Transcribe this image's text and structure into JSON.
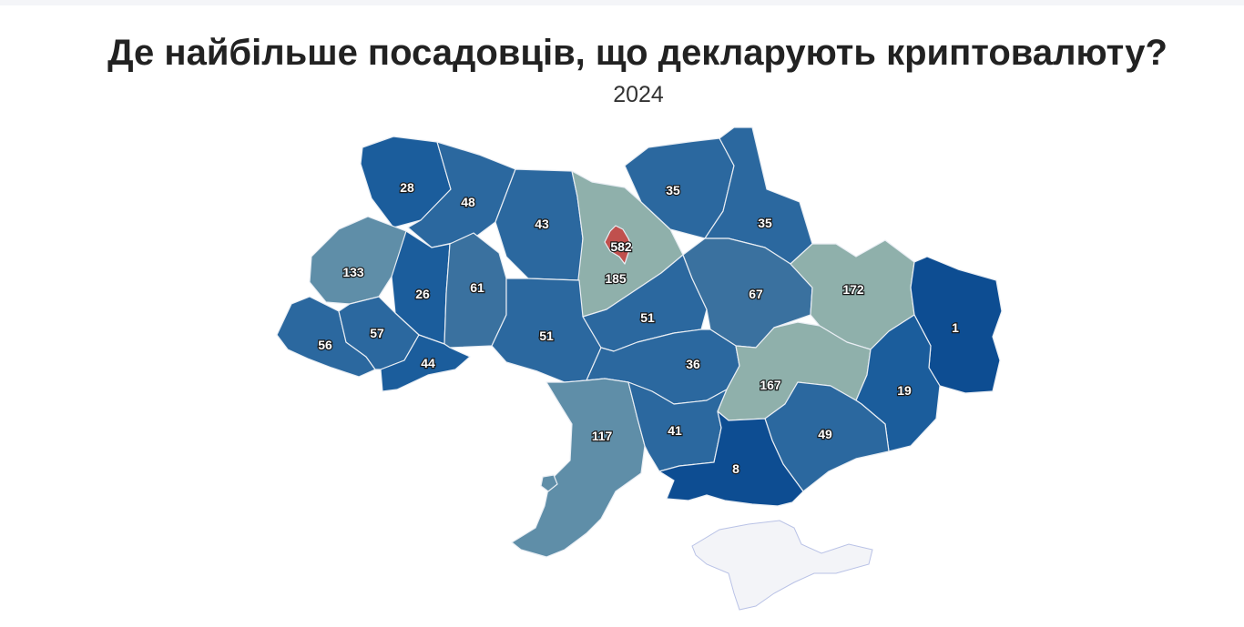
{
  "title": "Де найбільше посадовців, що декларують криптовалюту?",
  "subtitle": "2024",
  "colors": {
    "darkest": "#0d4d92",
    "dark": "#1b5d9c",
    "mid": "#2b689f",
    "midlight": "#3a719f",
    "steel": "#5f8ea8",
    "grey": "#8fb0ab",
    "kyiv_city": "#c0504d",
    "crimea": "#f3f4f8"
  },
  "regions": [
    {
      "id": "volyn",
      "value": "28"
    },
    {
      "id": "rivne",
      "value": "48"
    },
    {
      "id": "zhytomyr",
      "value": "43"
    },
    {
      "id": "kyiv-city",
      "value": "582"
    },
    {
      "id": "kyiv-oblast",
      "value": "185"
    },
    {
      "id": "chernihiv",
      "value": "35"
    },
    {
      "id": "sumy",
      "value": "35"
    },
    {
      "id": "lviv",
      "value": "133"
    },
    {
      "id": "ternopil",
      "value": "26"
    },
    {
      "id": "khmelnytskyi",
      "value": "61"
    },
    {
      "id": "vinnytsia",
      "value": "51"
    },
    {
      "id": "cherkasy",
      "value": "51"
    },
    {
      "id": "poltava",
      "value": "67"
    },
    {
      "id": "kharkiv",
      "value": "172"
    },
    {
      "id": "luhansk",
      "value": "1"
    },
    {
      "id": "zakarpattia",
      "value": "56"
    },
    {
      "id": "ivano-frankivsk",
      "value": "57"
    },
    {
      "id": "chernivtsi",
      "value": "44"
    },
    {
      "id": "kirovohrad",
      "value": "36"
    },
    {
      "id": "dnipropetrovsk",
      "value": "167"
    },
    {
      "id": "donetsk",
      "value": "19"
    },
    {
      "id": "odesa",
      "value": "117"
    },
    {
      "id": "mykolaiv",
      "value": "41"
    },
    {
      "id": "zaporizhzhia",
      "value": "49"
    },
    {
      "id": "kherson",
      "value": "8"
    }
  ]
}
